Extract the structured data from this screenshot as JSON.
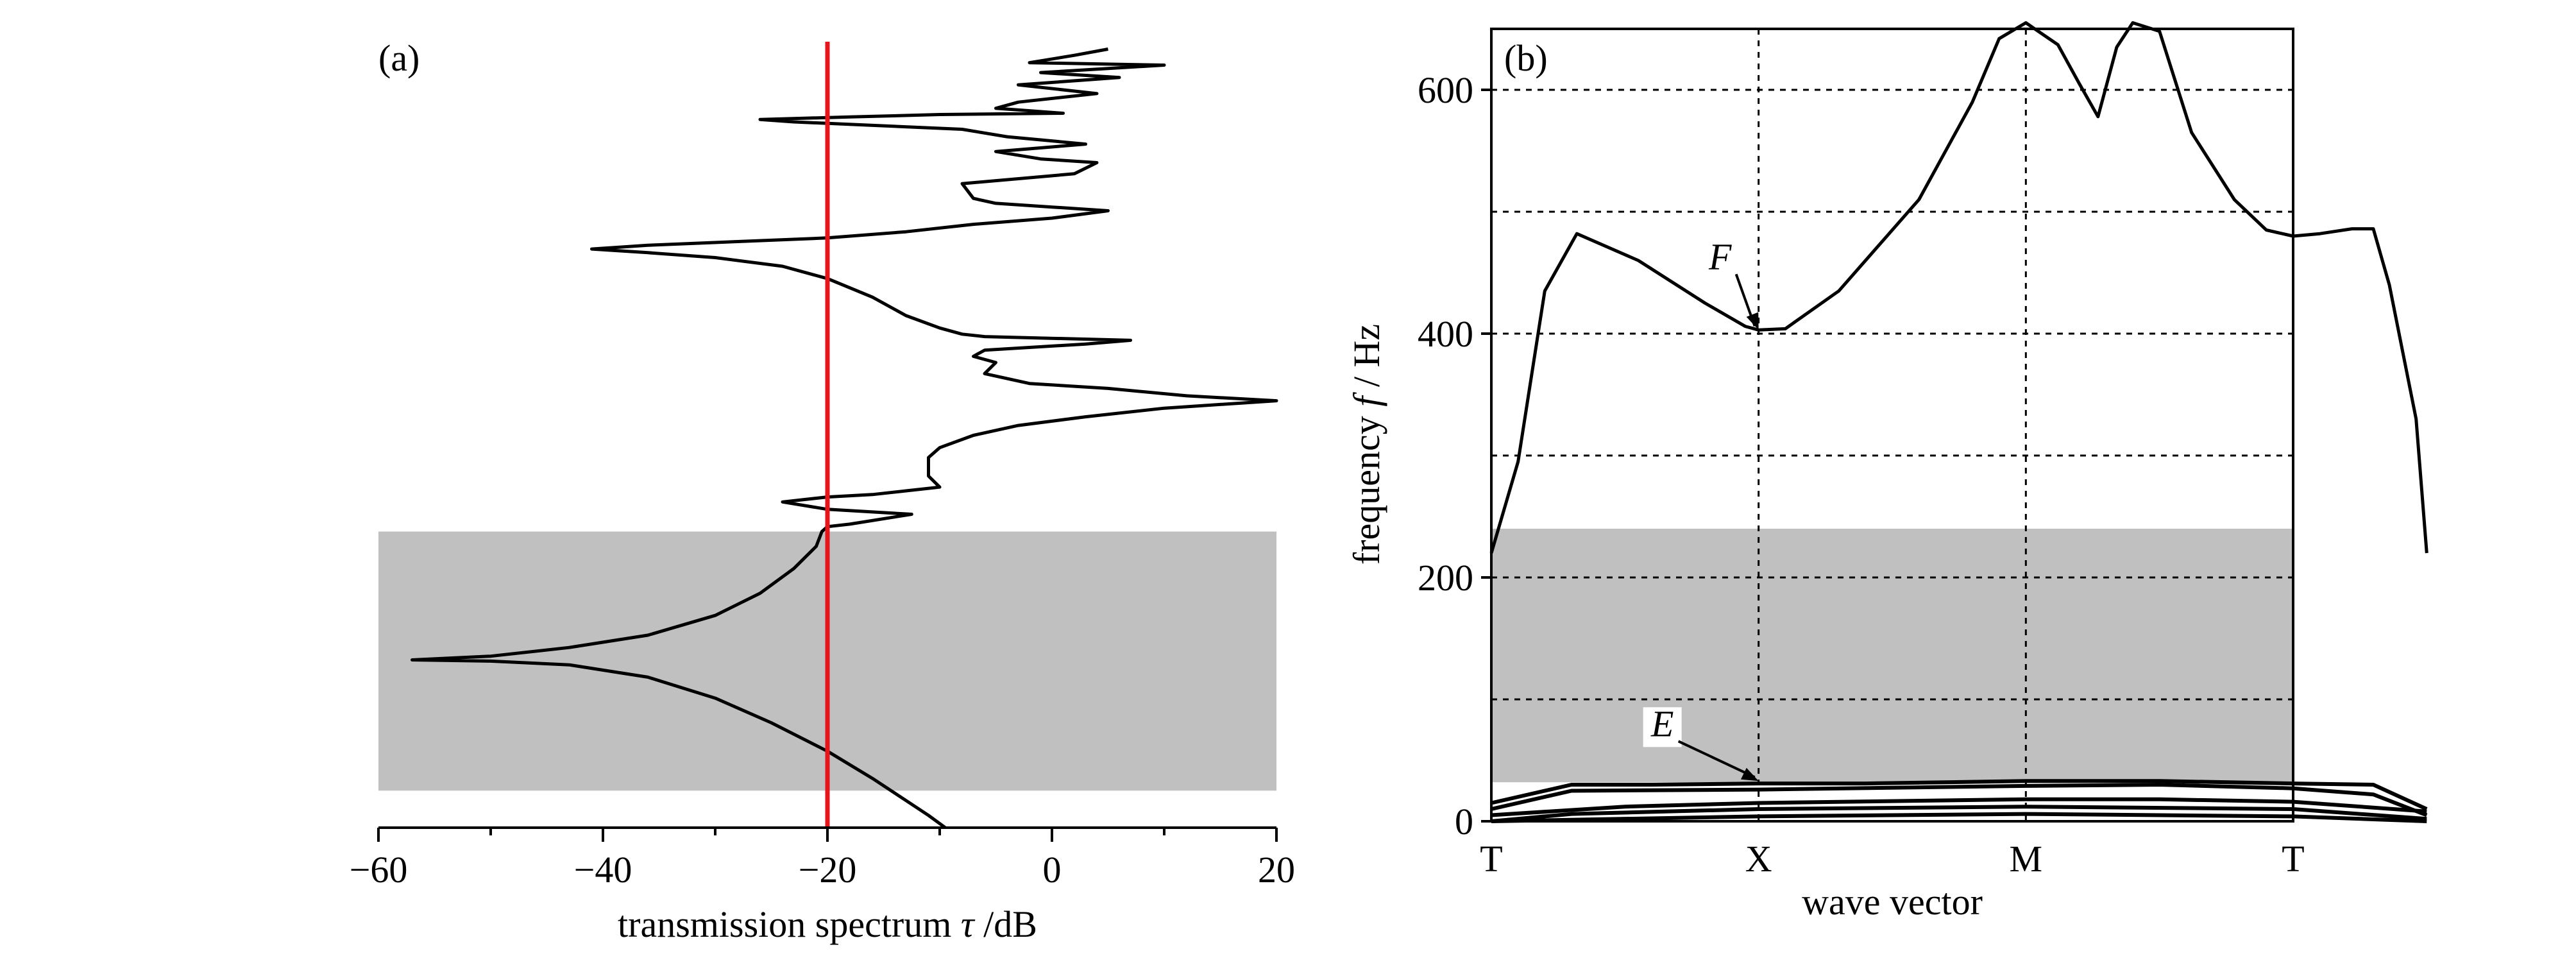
{
  "chart_data": [
    {
      "panel_label": "(a)",
      "type": "line",
      "xlabel_text": "transmission spectrum ",
      "xlabel_symbol": "τ",
      "xlabel_unit": " /dB",
      "ylabel": "",
      "xlim": [
        -60,
        20
      ],
      "ylim": [
        0,
        650
      ],
      "x_ticks": [
        -60,
        -40,
        -20,
        0,
        20
      ],
      "x_tick_labels": [
        "−60",
        "−40",
        "−20",
        "0",
        "20"
      ],
      "y_axis_visible": false,
      "grid": false,
      "reference_line": {
        "x": -20,
        "color": "#e8141c"
      },
      "band_gap_shading": {
        "y_range": [
          30,
          240
        ],
        "color": "#c0c0c0"
      },
      "series": [
        {
          "points": [
            [
              -9.5,
              0
            ],
            [
              -11,
              10
            ],
            [
              -13,
              22
            ],
            [
              -16,
              40
            ],
            [
              -20,
              62
            ],
            [
              -25,
              85
            ],
            [
              -30,
              105
            ],
            [
              -36,
              122
            ],
            [
              -43,
              132
            ],
            [
              -50,
              135
            ],
            [
              -57,
              136
            ],
            [
              -50,
              139
            ],
            [
              -43,
              146
            ],
            [
              -36,
              156
            ],
            [
              -30,
              172
            ],
            [
              -26,
              190
            ],
            [
              -23,
              210
            ],
            [
              -21,
              228
            ],
            [
              -20.5,
              240
            ],
            [
              -20,
              244
            ],
            [
              -18,
              246
            ],
            [
              -12.5,
              254
            ],
            [
              -20,
              258
            ],
            [
              -24,
              264
            ],
            [
              -20,
              268
            ],
            [
              -16,
              270
            ],
            [
              -10,
              276
            ],
            [
              -11,
              285
            ],
            [
              -11,
              300
            ],
            [
              -10,
              308
            ],
            [
              -7,
              318
            ],
            [
              -3,
              326
            ],
            [
              3,
              333
            ],
            [
              10,
              340
            ],
            [
              20,
              346
            ],
            [
              12,
              350
            ],
            [
              5,
              356
            ],
            [
              -2,
              360
            ],
            [
              -6,
              368
            ],
            [
              -5,
              377
            ],
            [
              -7,
              382
            ],
            [
              -6,
              387
            ],
            [
              3,
              392
            ],
            [
              7,
              395
            ],
            [
              -6,
              398
            ],
            [
              -8,
              400
            ],
            [
              -10,
              405
            ],
            [
              -13,
              415
            ],
            [
              -16,
              430
            ],
            [
              -20,
              445
            ],
            [
              -24,
              455
            ],
            [
              -30,
              462
            ],
            [
              -36,
              466
            ],
            [
              -41,
              469
            ],
            [
              -36,
              472
            ],
            [
              -28,
              475
            ],
            [
              -20,
              478
            ],
            [
              -13,
              483
            ],
            [
              -7,
              489
            ],
            [
              0,
              494
            ],
            [
              5,
              500
            ],
            [
              0,
              503
            ],
            [
              -5,
              506
            ],
            [
              -7,
              510
            ],
            [
              -8,
              522
            ],
            [
              2,
              530
            ],
            [
              4,
              539
            ],
            [
              -1,
              542
            ],
            [
              -5,
              548
            ],
            [
              3,
              554
            ],
            [
              -4,
              560
            ],
            [
              -8,
              566
            ],
            [
              -23,
              572
            ],
            [
              -26,
              574
            ],
            [
              -18,
              576
            ],
            [
              -10,
              578
            ],
            [
              1,
              579
            ],
            [
              -5,
              583
            ],
            [
              -3,
              588
            ],
            [
              4,
              595
            ],
            [
              -3,
              602
            ],
            [
              6,
              608
            ],
            [
              -1,
              612
            ],
            [
              10,
              618
            ],
            [
              -2,
              620
            ],
            [
              2,
              626
            ],
            [
              5,
              631
            ]
          ]
        }
      ]
    },
    {
      "panel_label": "(b)",
      "type": "line",
      "xlabel": "wave vector",
      "ylabel_text": "frequency ",
      "ylabel_symbol": "f",
      "ylabel_unit": " / Hz",
      "categories": [
        "T",
        "X",
        "M",
        "T"
      ],
      "ylim": [
        0,
        650
      ],
      "y_ticks": [
        0,
        200,
        400,
        600
      ],
      "y_tick_labels": [
        "0",
        "200",
        "400",
        "600"
      ],
      "y_grid": [
        100,
        200,
        300,
        400,
        500,
        600
      ],
      "x_grid": [
        "X",
        "M"
      ],
      "grid": true,
      "band_gap_shading": {
        "y_range": [
          32,
          240
        ],
        "color": "#c0c0c0"
      },
      "series": [
        {
          "points": [
            [
              0,
              220
            ],
            [
              0.1,
              295
            ],
            [
              0.2,
              435
            ],
            [
              0.32,
              482
            ],
            [
              0.55,
              460
            ],
            [
              0.8,
              425
            ],
            [
              0.95,
              406
            ],
            [
              1.0,
              403
            ],
            [
              1.1,
              404
            ],
            [
              1.3,
              435
            ],
            [
              1.6,
              510
            ],
            [
              1.8,
              590
            ],
            [
              1.9,
              642
            ],
            [
              2.0,
              655
            ],
            [
              2.12,
              637
            ],
            [
              2.2,
              605
            ],
            [
              2.27,
              578
            ],
            [
              2.34,
              635
            ],
            [
              2.4,
              655
            ],
            [
              2.5,
              648
            ],
            [
              2.62,
              565
            ],
            [
              2.78,
              510
            ],
            [
              2.9,
              485
            ],
            [
              3.0,
              480
            ],
            [
              3.1,
              482
            ],
            [
              3.22,
              486
            ],
            [
              3.3,
              486
            ],
            [
              3.36,
              440
            ],
            [
              3.46,
              330
            ],
            [
              3.5,
              220
            ]
          ]
        },
        {
          "points": [
            [
              0,
              15
            ],
            [
              0.3,
              30
            ],
            [
              0.6,
              30
            ],
            [
              1.0,
              31
            ],
            [
              1.4,
              31
            ],
            [
              2.0,
              33
            ],
            [
              2.5,
              33
            ],
            [
              3.0,
              31
            ],
            [
              3.3,
              30
            ],
            [
              3.5,
              10
            ]
          ]
        },
        {
          "points": [
            [
              0,
              10
            ],
            [
              0.3,
              25
            ],
            [
              1.0,
              26
            ],
            [
              2.0,
              29
            ],
            [
              2.5,
              30
            ],
            [
              3.0,
              27
            ],
            [
              3.3,
              22
            ],
            [
              3.5,
              5
            ]
          ]
        },
        {
          "points": [
            [
              0,
              5
            ],
            [
              0.5,
              12
            ],
            [
              1.0,
              15
            ],
            [
              2.0,
              18
            ],
            [
              2.5,
              18
            ],
            [
              3.0,
              16
            ],
            [
              3.5,
              8
            ]
          ]
        },
        {
          "points": [
            [
              0,
              0
            ],
            [
              0.3,
              6
            ],
            [
              1.0,
              10
            ],
            [
              2.0,
              12
            ],
            [
              3.0,
              10
            ],
            [
              3.5,
              2
            ]
          ]
        },
        {
          "points": [
            [
              0,
              0
            ],
            [
              1.0,
              4
            ],
            [
              2.0,
              6
            ],
            [
              3.0,
              4
            ],
            [
              3.5,
              0
            ]
          ]
        }
      ],
      "annotations": [
        {
          "text": "F",
          "target": [
            1.0,
            403
          ]
        },
        {
          "text": "E",
          "target": [
            1.0,
            33
          ]
        }
      ]
    }
  ]
}
